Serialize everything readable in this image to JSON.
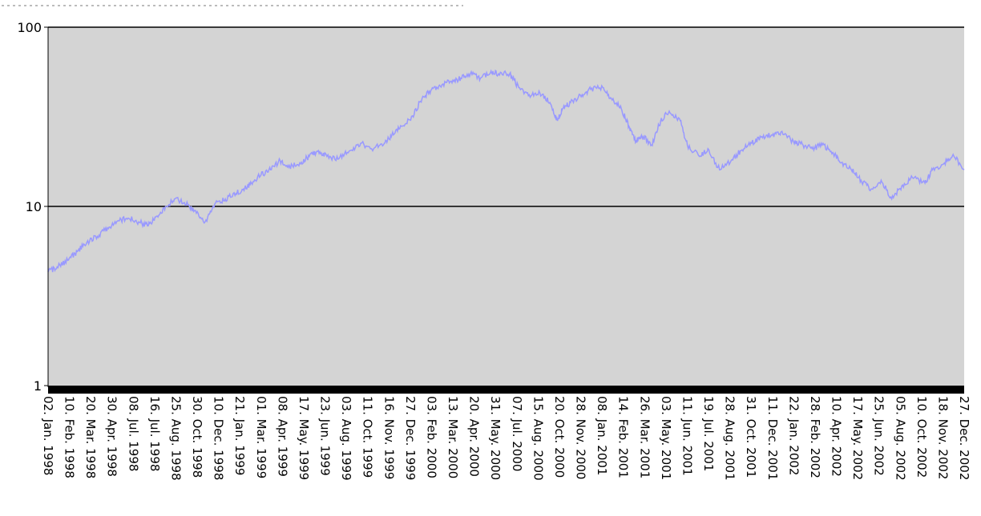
{
  "chart_data": {
    "type": "line",
    "title": "",
    "xlabel": "",
    "ylabel": "",
    "y_scale": "log",
    "ylim": [
      1,
      100
    ],
    "y_ticks": [
      "1",
      "10",
      "100"
    ],
    "grid": "horizontal at 10 and 100",
    "legend": "none",
    "colors": {
      "plot_background": "#d4d4d4",
      "line": "#9999ff",
      "gridline": "#000000",
      "axis": "#000000"
    },
    "x_ticks": [
      "02. Jan. 1998",
      "10. Feb. 1998",
      "20. Mar. 1998",
      "30. Apr. 1998",
      "08. Jul. 1998",
      "16. Jul. 1998",
      "25. Aug. 1998",
      "30. Oct. 1998",
      "10. Dec. 1998",
      "21. Jan. 1999",
      "01. Mar. 1999",
      "08. Apr. 1999",
      "17. May. 1999",
      "23. Jun. 1999",
      "03. Aug. 1999",
      "11. Oct. 1999",
      "16. Nov. 1999",
      "27. Dec. 1999",
      "03. Feb. 2000",
      "13. Mar. 2000",
      "20. Apr. 2000",
      "31. May. 2000",
      "07. Jul. 2000",
      "15. Aug. 2000",
      "20. Oct. 2000",
      "28. Nov. 2000",
      "08. Jan. 2001",
      "14. Feb. 2001",
      "26. Mar. 2001",
      "03. May. 2001",
      "11. Jun. 2001",
      "19. Jul. 2001",
      "28. Aug. 2001",
      "31. Oct. 2001",
      "11. Dec. 2001",
      "22. Jan. 2002",
      "28. Feb. 2002",
      "10. Apr. 2002",
      "17. May. 2002",
      "25. Jun. 2002",
      "05. Aug. 2002",
      "10. Oct. 2002",
      "18. Nov. 2002",
      "27. Dec. 2002"
    ],
    "series": [
      {
        "x": [
          "1998-01-02",
          "1998-01-20",
          "1998-02-10",
          "1998-03-01",
          "1998-03-20",
          "1998-04-10",
          "1998-04-30",
          "1998-05-20",
          "1998-06-10",
          "1998-07-01",
          "1998-07-20",
          "1998-08-05",
          "1998-08-25",
          "1998-09-10",
          "1998-09-30",
          "1998-10-20",
          "1998-11-10",
          "1998-12-01",
          "1998-12-20",
          "1999-01-10",
          "1999-01-25",
          "1999-02-10",
          "1999-03-01",
          "1999-03-20",
          "1999-04-08",
          "1999-04-25",
          "1999-05-17",
          "1999-06-05",
          "1999-06-23",
          "1999-07-10",
          "1999-08-03",
          "1999-08-25",
          "1999-09-15",
          "1999-10-11",
          "1999-11-01",
          "1999-11-16",
          "1999-12-05",
          "1999-12-27",
          "2000-01-15",
          "2000-02-03",
          "2000-02-20",
          "2000-03-13",
          "2000-04-01",
          "2000-04-20",
          "2000-05-10",
          "2000-05-31",
          "2000-06-15",
          "2000-07-07",
          "2000-07-25",
          "2000-08-15",
          "2000-09-05",
          "2000-09-25",
          "2000-10-10",
          "2000-10-20",
          "2000-11-05",
          "2000-11-28",
          "2000-12-15",
          "2001-01-08",
          "2001-01-25",
          "2001-02-14",
          "2001-03-01",
          "2001-03-15",
          "2001-03-26",
          "2001-04-15",
          "2001-05-03",
          "2001-05-20",
          "2001-06-11",
          "2001-06-25",
          "2001-07-19",
          "2001-08-05",
          "2001-08-28",
          "2001-09-20",
          "2001-10-10",
          "2001-10-31",
          "2001-11-20",
          "2001-12-11",
          "2001-12-28",
          "2002-01-22",
          "2002-02-10",
          "2002-02-28",
          "2002-03-20",
          "2002-04-10",
          "2002-04-25",
          "2002-05-17",
          "2002-06-05",
          "2002-06-25",
          "2002-07-15",
          "2002-08-05",
          "2002-08-25",
          "2002-09-15",
          "2002-10-10",
          "2002-10-25",
          "2002-11-18",
          "2002-12-05",
          "2002-12-27"
        ],
        "y": [
          4.3,
          4.6,
          5.0,
          5.6,
          6.3,
          6.8,
          7.6,
          8.3,
          8.6,
          8.2,
          7.8,
          8.8,
          10.0,
          11.0,
          10.5,
          9.5,
          8.2,
          10.5,
          11.0,
          11.8,
          12.5,
          13.5,
          15.0,
          16.0,
          18.0,
          16.5,
          17.5,
          19.0,
          20.5,
          19.0,
          18.5,
          20.5,
          22.5,
          21.0,
          22.5,
          25.0,
          28.0,
          32.0,
          40.0,
          45.0,
          47.0,
          50.0,
          52.0,
          55.0,
          52.0,
          57.0,
          55.0,
          55.0,
          46.0,
          42.0,
          43.0,
          38.0,
          30.0,
          35.0,
          38.0,
          42.0,
          45.0,
          46.0,
          40.0,
          35.0,
          28.0,
          23.0,
          25.0,
          22.0,
          30.0,
          34.0,
          30.0,
          22.0,
          19.0,
          21.0,
          16.0,
          18.0,
          20.5,
          22.5,
          24.5,
          25.0,
          26.0,
          23.0,
          22.0,
          21.0,
          22.0,
          20.0,
          17.5,
          16.0,
          14.0,
          12.5,
          14.0,
          11.0,
          13.0,
          14.5,
          13.5,
          16.0,
          17.5,
          19.5,
          16.0
        ]
      }
    ]
  }
}
